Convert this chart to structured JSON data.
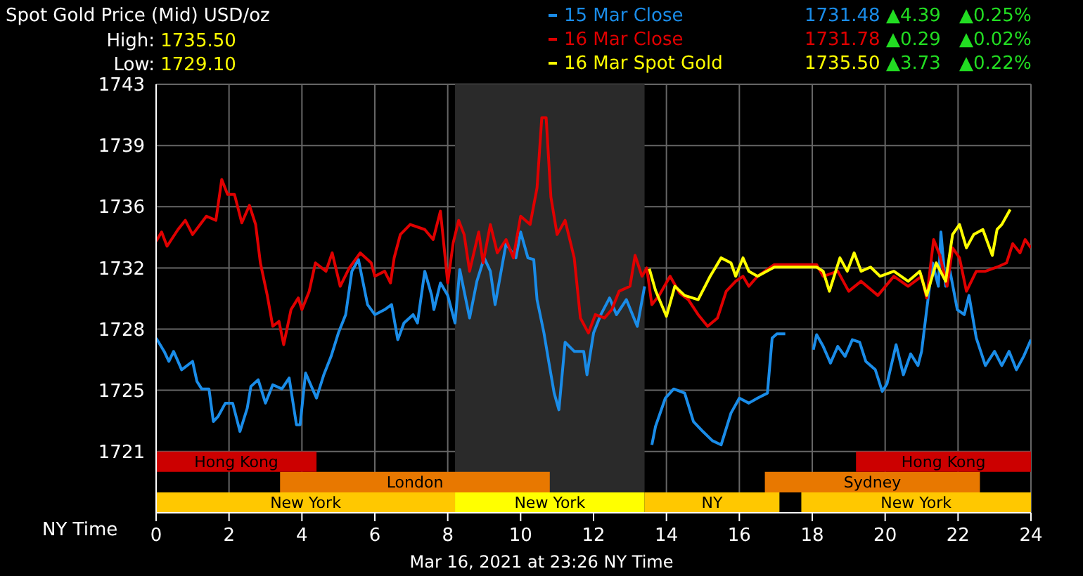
{
  "chart_data": {
    "type": "line",
    "title": "Spot Gold Price (Mid) USD/oz",
    "xlabel": "NY Time",
    "annotations": [
      "High: 1735.50",
      "Low: 1729.10",
      "1731.48",
      "▲4.39",
      "▲0.25%",
      "1731.78",
      "▲0.29",
      "▲0.02%",
      "1735.50",
      "▲3.73",
      "▲0.22%",
      "Mar 16, 2021 at 23:26 NY Time"
    ],
    "xlim": [
      0,
      24
    ],
    "xticks": [
      0,
      2,
      4,
      6,
      8,
      10,
      12,
      14,
      16,
      18,
      20,
      22,
      24
    ],
    "ylim": [
      1717.33,
      1743
    ],
    "yticks": [
      1721,
      {
        "value": 1724.67,
        "label": "1725"
      },
      {
        "value": 1728.33,
        "label": "1728"
      },
      1732,
      {
        "value": 1735.67,
        "label": "1736"
      },
      {
        "value": 1739.33,
        "label": "1739"
      },
      1743
    ],
    "grid": true,
    "legend": "top right",
    "marker": "none",
    "line_style": "solid",
    "bands": [
      {
        "axis": "x",
        "from": 8.2,
        "to": 13.4,
        "color": "#2a2a2a"
      },
      {
        "axis": "x",
        "from": 0,
        "to": 8.2,
        "label": "New York",
        "color": "#ffc800"
      },
      {
        "axis": "x",
        "from": 8.2,
        "to": 13.4,
        "label": "New York",
        "color": "#ffff00"
      },
      {
        "axis": "x",
        "from": 13.4,
        "to": 17.1,
        "label": "NY",
        "color": "#ffc800"
      },
      {
        "axis": "x",
        "from": 17.7,
        "to": 24,
        "label": "New York",
        "color": "#ffc800"
      },
      {
        "axis": "x",
        "from": 3.4,
        "to": 10.8,
        "label": "London",
        "color": "#e87800"
      },
      {
        "axis": "x",
        "from": 16.7,
        "to": 22.6,
        "label": "Sydney",
        "color": "#e87800"
      },
      {
        "axis": "x",
        "from": 0,
        "to": 4.4,
        "label": "Hong Kong",
        "color": "#cc0000"
      },
      {
        "axis": "x",
        "from": 19.2,
        "to": 24,
        "label": "Hong Kong",
        "color": "#cc0000"
      }
    ],
    "series": [
      {
        "name": "15 Mar Close",
        "color": "#1a8ce8",
        "x": [
          0,
          0.22,
          0.35,
          0.48,
          0.7,
          1.0,
          1.12,
          1.25,
          1.45,
          1.57,
          1.7,
          1.9,
          2.1,
          2.3,
          2.5,
          2.6,
          2.8,
          3.0,
          3.2,
          3.45,
          3.65,
          3.85,
          3.95,
          4.1,
          4.4,
          4.6,
          4.8,
          5.0,
          5.2,
          5.37,
          5.55,
          5.8,
          6.0,
          6.27,
          6.46,
          6.63,
          6.8,
          7.05,
          7.17,
          7.37,
          7.56,
          7.62,
          7.8,
          8.0,
          8.2,
          8.33,
          8.6,
          8.8,
          9.0,
          9.17,
          9.3,
          9.6,
          9.87,
          10.0,
          10.2,
          10.36,
          10.45,
          10.64,
          10.77,
          10.92,
          11.05,
          11.22,
          11.47,
          11.73,
          11.82,
          12.0,
          12.2,
          12.44,
          12.63,
          12.9,
          13.2,
          13.4,
          13.5,
          13.6,
          13.7,
          13.97,
          14.2,
          14.5,
          14.74,
          15.0,
          15.26,
          15.5,
          15.77,
          16.0,
          16.26,
          16.5,
          16.77,
          16.9,
          17.03,
          17.26,
          17.6,
          18.03,
          18.12,
          18.3,
          18.5,
          18.7,
          18.9,
          19.1,
          19.3,
          19.47,
          19.73,
          19.92,
          20.05,
          20.3,
          20.5,
          20.7,
          20.9,
          21.0,
          21.14,
          21.3,
          21.46,
          21.53,
          21.66,
          21.78,
          21.98,
          22.17,
          22.3,
          22.5,
          22.75,
          23.0,
          23.2,
          23.4,
          23.6,
          23.8,
          24.0
        ],
        "values": [
          1727.8,
          1727.0,
          1726.4,
          1727.0,
          1725.9,
          1726.4,
          1725.2,
          1724.75,
          1724.75,
          1722.8,
          1723.1,
          1723.9,
          1723.9,
          1722.2,
          1723.6,
          1724.9,
          1725.3,
          1723.9,
          1725.0,
          1724.75,
          1725.4,
          1722.6,
          1722.6,
          1725.7,
          1724.2,
          1725.6,
          1726.7,
          1728.1,
          1729.2,
          1731.8,
          1732.5,
          1729.8,
          1729.2,
          1729.5,
          1729.8,
          1727.7,
          1728.7,
          1729.2,
          1728.7,
          1731.8,
          1730.35,
          1729.5,
          1731.1,
          1730.35,
          1728.7,
          1731.9,
          1729.0,
          1731.2,
          1732.6,
          1731.8,
          1729.8,
          1733.45,
          1732.6,
          1734.15,
          1732.6,
          1732.5,
          1730.1,
          1728.1,
          1726.4,
          1724.5,
          1723.5,
          1727.55,
          1727.0,
          1727.0,
          1725.6,
          1728.1,
          1729.2,
          1730.2,
          1729.2,
          1730.1,
          1728.5,
          1730.9,
          null,
          1721.4,
          1722.5,
          1724.2,
          1724.75,
          1724.5,
          1722.8,
          1722.2,
          1721.65,
          1721.4,
          1723.3,
          1724.2,
          1723.9,
          1724.2,
          1724.5,
          1727.8,
          1728.05,
          1728.05,
          null,
          1727.1,
          1728.0,
          1727.3,
          1726.3,
          1727.3,
          1726.7,
          1727.7,
          1727.55,
          1726.4,
          1725.9,
          1724.6,
          1725.05,
          1727.4,
          1725.6,
          1726.85,
          1726.15,
          1727.0,
          1729.5,
          1732.3,
          1730.9,
          1734.15,
          1730.9,
          1731.8,
          1729.5,
          1729.2,
          1730.35,
          1727.8,
          1726.15,
          1727.0,
          1726.15,
          1727.0,
          1725.9,
          1726.7,
          1727.7
        ]
      },
      {
        "name": "16 Mar Close",
        "color": "#e00000",
        "x": [
          0,
          0.15,
          0.3,
          0.6,
          0.8,
          1.0,
          1.38,
          1.64,
          1.8,
          1.96,
          2.15,
          2.35,
          2.56,
          2.73,
          2.86,
          3.05,
          3.2,
          3.37,
          3.5,
          3.7,
          3.9,
          4.0,
          4.2,
          4.37,
          4.66,
          4.83,
          5.05,
          5.3,
          5.6,
          5.9,
          6.0,
          6.27,
          6.43,
          6.53,
          6.7,
          6.97,
          7.37,
          7.6,
          7.8,
          8.0,
          8.15,
          8.3,
          8.45,
          8.6,
          8.85,
          8.97,
          9.17,
          9.36,
          9.6,
          9.8,
          10.0,
          10.26,
          10.45,
          10.58,
          10.7,
          10.83,
          11.0,
          11.22,
          11.47,
          11.64,
          11.86,
          12.05,
          12.3,
          12.5,
          12.7,
          13.0,
          13.14,
          13.33,
          13.46,
          13.6,
          13.8,
          14.1,
          14.36,
          14.6,
          14.87,
          15.13,
          15.4,
          15.64,
          15.9,
          16.1,
          16.26,
          16.5,
          16.96,
          18.12,
          18.3,
          18.7,
          19.0,
          19.34,
          19.8,
          20.24,
          20.63,
          21.0,
          21.14,
          21.33,
          21.5,
          21.7,
          21.85,
          22.04,
          22.23,
          22.5,
          22.75,
          23.07,
          23.33,
          23.5,
          23.7,
          23.84,
          24.0
        ],
        "values": [
          1733.6,
          1734.15,
          1733.3,
          1734.3,
          1734.85,
          1734.0,
          1735.1,
          1734.85,
          1737.3,
          1736.4,
          1736.4,
          1734.7,
          1735.75,
          1734.6,
          1732.3,
          1730.35,
          1728.5,
          1728.8,
          1727.4,
          1729.5,
          1730.2,
          1729.5,
          1730.6,
          1732.3,
          1731.8,
          1732.9,
          1730.9,
          1732.0,
          1732.9,
          1732.3,
          1731.5,
          1731.8,
          1731.1,
          1732.6,
          1734.0,
          1734.6,
          1734.3,
          1733.7,
          1735.4,
          1731.1,
          1733.5,
          1734.85,
          1734.0,
          1731.8,
          1734.15,
          1732.3,
          1734.6,
          1732.9,
          1733.7,
          1732.6,
          1735.1,
          1734.6,
          1736.8,
          1741.0,
          1741.0,
          1736.25,
          1734.0,
          1734.85,
          1732.6,
          1729.0,
          1728.1,
          1729.2,
          1729.0,
          1729.5,
          1730.6,
          1730.9,
          1732.75,
          1731.5,
          1732.0,
          1729.8,
          1730.35,
          1731.5,
          1730.5,
          1730.1,
          1729.2,
          1728.5,
          1729.0,
          1730.6,
          1731.2,
          1731.5,
          1730.9,
          1731.5,
          1732.2,
          1732.2,
          1731.5,
          1731.8,
          1730.6,
          1731.2,
          1730.35,
          1731.5,
          1730.9,
          1731.5,
          1730.2,
          1733.7,
          1732.75,
          1730.9,
          1733.2,
          1732.6,
          1730.6,
          1731.8,
          1731.8,
          1732.05,
          1732.3,
          1733.45,
          1732.9,
          1733.7,
          1733.2
        ]
      },
      {
        "name": "16 Mar Spot Gold",
        "color": "#ffff00",
        "x": [
          13.53,
          13.7,
          14.0,
          14.23,
          14.5,
          14.87,
          15.2,
          15.5,
          15.77,
          15.9,
          16.1,
          16.26,
          16.5,
          16.96,
          18.12,
          18.3,
          18.47,
          18.76,
          18.96,
          19.15,
          19.34,
          19.6,
          19.86,
          20.24,
          20.63,
          20.95,
          21.14,
          21.4,
          21.66,
          21.85,
          22.04,
          22.23,
          22.43,
          22.68,
          22.94,
          23.07,
          23.2,
          23.43
        ],
        "values": [
          1731.95,
          1730.65,
          1729.1,
          1730.9,
          1730.35,
          1730.1,
          1731.5,
          1732.6,
          1732.3,
          1731.5,
          1732.6,
          1731.8,
          1731.5,
          1732.05,
          1732.05,
          1731.8,
          1730.6,
          1732.6,
          1731.8,
          1732.9,
          1731.8,
          1732.05,
          1731.5,
          1731.8,
          1731.2,
          1731.8,
          1730.35,
          1732.3,
          1731.2,
          1734.0,
          1734.6,
          1733.2,
          1734.0,
          1734.3,
          1732.75,
          1734.3,
          1734.6,
          1735.5
        ]
      }
    ]
  }
}
